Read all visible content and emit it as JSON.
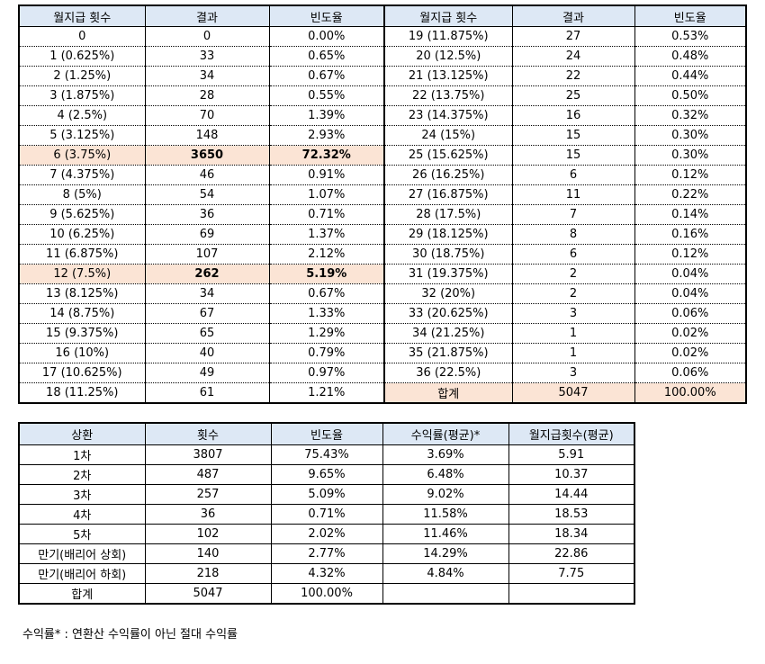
{
  "table1": {
    "headers": [
      "월지급 횟수",
      "결과",
      "빈도율",
      "월지급 횟수",
      "결과",
      "빈도율"
    ],
    "left_rows": [
      {
        "count": "0",
        "result": "0",
        "freq": "0.00%"
      },
      {
        "count": "1 (0.625%)",
        "result": "33",
        "freq": "0.65%"
      },
      {
        "count": "2 (1.25%)",
        "result": "34",
        "freq": "0.67%"
      },
      {
        "count": "3 (1.875%)",
        "result": "28",
        "freq": "0.55%"
      },
      {
        "count": "4 (2.5%)",
        "result": "70",
        "freq": "1.39%"
      },
      {
        "count": "5 (3.125%)",
        "result": "148",
        "freq": "2.93%"
      },
      {
        "count": "6 (3.75%)",
        "result": "3650",
        "freq": "72.32%",
        "highlight": true
      },
      {
        "count": "7 (4.375%)",
        "result": "46",
        "freq": "0.91%"
      },
      {
        "count": "8 (5%)",
        "result": "54",
        "freq": "1.07%"
      },
      {
        "count": "9 (5.625%)",
        "result": "36",
        "freq": "0.71%"
      },
      {
        "count": "10 (6.25%)",
        "result": "69",
        "freq": "1.37%"
      },
      {
        "count": "11 (6.875%)",
        "result": "107",
        "freq": "2.12%"
      },
      {
        "count": "12 (7.5%)",
        "result": "262",
        "freq": "5.19%",
        "highlight": true
      },
      {
        "count": "13 (8.125%)",
        "result": "34",
        "freq": "0.67%"
      },
      {
        "count": "14 (8.75%)",
        "result": "67",
        "freq": "1.33%"
      },
      {
        "count": "15 (9.375%)",
        "result": "65",
        "freq": "1.29%"
      },
      {
        "count": "16 (10%)",
        "result": "40",
        "freq": "0.79%"
      },
      {
        "count": "17 (10.625%)",
        "result": "49",
        "freq": "0.97%"
      },
      {
        "count": "18 (11.25%)",
        "result": "61",
        "freq": "1.21%"
      }
    ],
    "right_rows": [
      {
        "count": "19 (11.875%)",
        "result": "27",
        "freq": "0.53%"
      },
      {
        "count": "20 (12.5%)",
        "result": "24",
        "freq": "0.48%"
      },
      {
        "count": "21 (13.125%)",
        "result": "22",
        "freq": "0.44%"
      },
      {
        "count": "22 (13.75%)",
        "result": "25",
        "freq": "0.50%"
      },
      {
        "count": "23 (14.375%)",
        "result": "16",
        "freq": "0.32%"
      },
      {
        "count": "24 (15%)",
        "result": "15",
        "freq": "0.30%"
      },
      {
        "count": "25 (15.625%)",
        "result": "15",
        "freq": "0.30%"
      },
      {
        "count": "26 (16.25%)",
        "result": "6",
        "freq": "0.12%"
      },
      {
        "count": "27 (16.875%)",
        "result": "11",
        "freq": "0.22%"
      },
      {
        "count": "28 (17.5%)",
        "result": "7",
        "freq": "0.14%"
      },
      {
        "count": "29 (18.125%)",
        "result": "8",
        "freq": "0.16%"
      },
      {
        "count": "30 (18.75%)",
        "result": "6",
        "freq": "0.12%"
      },
      {
        "count": "31 (19.375%)",
        "result": "2",
        "freq": "0.04%"
      },
      {
        "count": "32 (20%)",
        "result": "2",
        "freq": "0.04%"
      },
      {
        "count": "33 (20.625%)",
        "result": "3",
        "freq": "0.06%"
      },
      {
        "count": "34 (21.25%)",
        "result": "1",
        "freq": "0.02%"
      },
      {
        "count": "35 (21.875%)",
        "result": "1",
        "freq": "0.02%"
      },
      {
        "count": "36 (22.5%)",
        "result": "3",
        "freq": "0.06%"
      },
      {
        "count": "합계",
        "result": "5047",
        "freq": "100.00%",
        "total": true
      }
    ]
  },
  "table2": {
    "headers": [
      "상환",
      "횟수",
      "빈도율",
      "수익률(평균)*",
      "월지급횟수(평균)"
    ],
    "rows": [
      [
        "1차",
        "3807",
        "75.43%",
        "3.69%",
        "5.91"
      ],
      [
        "2차",
        "487",
        "9.65%",
        "6.48%",
        "10.37"
      ],
      [
        "3차",
        "257",
        "5.09%",
        "9.02%",
        "14.44"
      ],
      [
        "4차",
        "36",
        "0.71%",
        "11.58%",
        "18.53"
      ],
      [
        "5차",
        "102",
        "2.02%",
        "11.46%",
        "18.34"
      ],
      [
        "만기(배리어 상회)",
        "140",
        "2.77%",
        "14.29%",
        "22.86"
      ],
      [
        "만기(배리어 하회)",
        "218",
        "4.32%",
        "4.84%",
        "7.75"
      ],
      [
        "합계",
        "5047",
        "100.00%",
        "",
        ""
      ]
    ]
  },
  "footnote": "수익률* : 연환산 수익률이 아닌 절대 수익률",
  "colors": {
    "header_bg": "#dde8f5",
    "highlight_bg": "#fbe4d5"
  }
}
